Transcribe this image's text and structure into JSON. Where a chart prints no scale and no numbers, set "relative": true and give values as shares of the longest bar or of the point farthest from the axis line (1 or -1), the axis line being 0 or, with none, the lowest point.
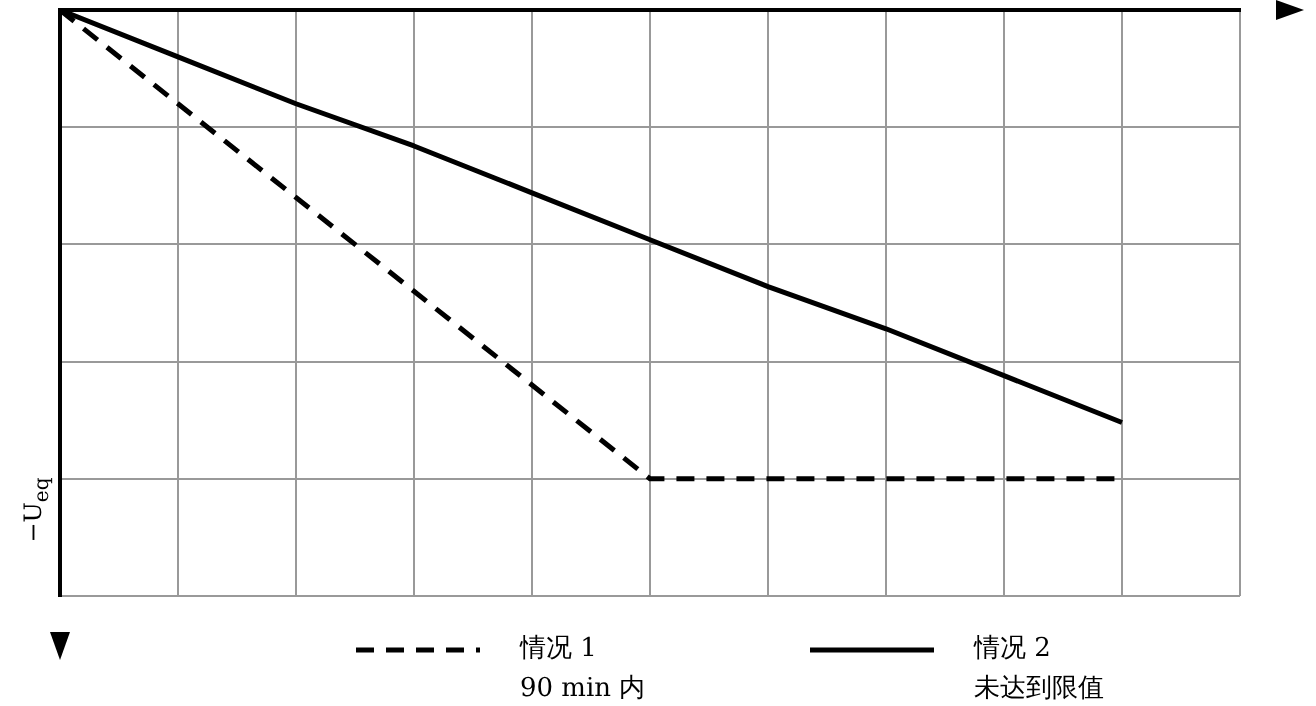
{
  "chart_data": {
    "type": "line",
    "relative": true,
    "ylabel": "−U$_{eq}$",
    "categories": [
      null,
      null,
      null,
      null,
      null,
      null,
      null,
      null,
      null,
      null,
      null
    ],
    "grid": true,
    "legend": "bottom",
    "marker": "none",
    "series": [
      {
        "name": "情况 1\n90 min 内",
        "color": "#000000",
        "line_style": "dashed",
        "values": [
          0,
          -0.2,
          -0.4,
          -0.6,
          -0.8,
          -1,
          -1,
          -1,
          -1,
          -1,
          null
        ]
      },
      {
        "name": "情况 2\n未达到限值",
        "color": "#000000",
        "line_style": "solid",
        "values": [
          0,
          -0.1,
          -0.2,
          -0.29,
          -0.39,
          -0.49,
          -0.59,
          -0.68,
          -0.78,
          -0.88,
          null
        ]
      }
    ]
  }
}
